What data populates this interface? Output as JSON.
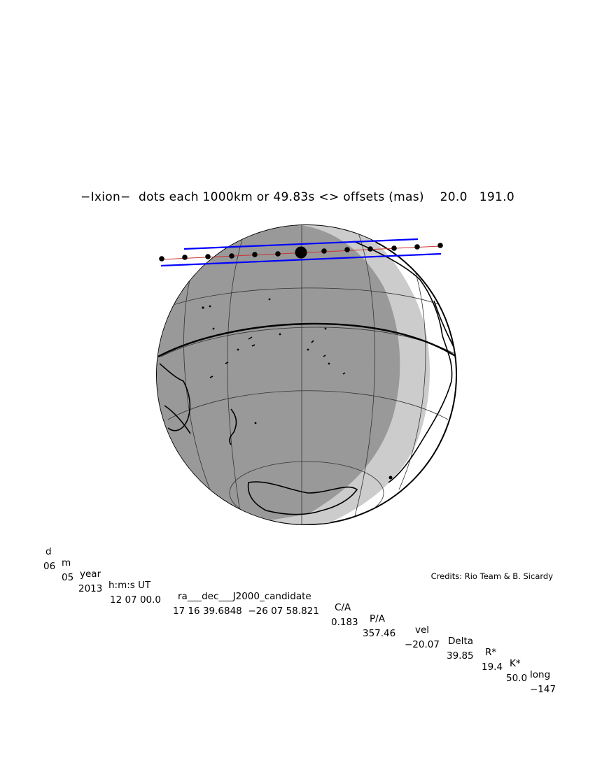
{
  "title": "−Ixion−  dots each 1000km or 49.83s <> offsets (mas)    20.0   191.0",
  "table": {
    "headers": [
      "d",
      "m",
      "year",
      "h:m:s UT",
      "ra___dec___J2000_candidate",
      "C/A",
      "P/A",
      "vel",
      "Delta",
      "R*",
      "K*",
      "long"
    ],
    "values": [
      "06",
      "05",
      "2013",
      "12 07 00.0",
      "17 16 39.6848  −26 07 58.821",
      "0.183",
      "357.46",
      "−20.07",
      "39.85",
      "19.4",
      "50.0",
      "−147"
    ]
  },
  "credits": "Credits: Rio Team & B. Sicardy",
  "colors": {
    "night_shade": "#999999",
    "twilight_shade": "#cccccc",
    "day_side": "#ffffff",
    "shadow_limits": "#0000ff",
    "track": "#cc3333",
    "coastlines": "#000000"
  }
}
